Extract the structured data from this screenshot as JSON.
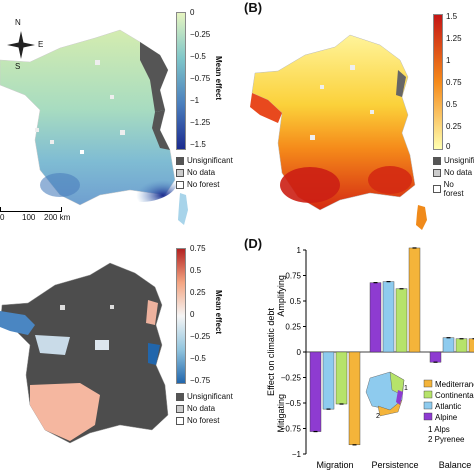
{
  "panels": {
    "B": "(B)",
    "D": "(D)"
  },
  "compass": {
    "N": "N",
    "E": "E",
    "S": "S"
  },
  "scalebar": {
    "t0": "0",
    "t1": "100",
    "t2": "200 km"
  },
  "colorbar_a": {
    "title": "Mean effect",
    "ticks": [
      "0",
      "−0.25",
      "−0.5",
      "−0.75",
      "−1",
      "−1.25",
      "−1.5"
    ],
    "colors": {
      "top": "#e6f5c0",
      "mid": "#7fc6c9",
      "low": "#4b7fbd",
      "bottom": "#1b2b8f"
    }
  },
  "colorbar_b": {
    "ticks": [
      "1.5",
      "1.25",
      "1",
      "0.75",
      "0.5",
      "0.25",
      "0"
    ],
    "colors": {
      "top": "#c41515",
      "mid": "#f58a1a",
      "bottom": "#ffffb0"
    }
  },
  "colorbar_c": {
    "title": "Mean effect",
    "ticks": [
      "0.75",
      "0.5",
      "0.25",
      "0",
      "−0.25",
      "−0.5",
      "−0.75"
    ],
    "colors": {
      "top": "#b22222",
      "mid": "#f5f5f5",
      "bottom": "#2166ac"
    }
  },
  "legend_map": {
    "unsig": "Unsignificant",
    "nodata": "No data",
    "noforest": "No forest",
    "unsig_b": "Unsignifi",
    "colors": {
      "unsig": "#555555",
      "nodata": "#cccccc",
      "noforest": "#ffffff"
    }
  },
  "chart_data": {
    "type": "bar",
    "categories": [
      "Migration",
      "Persistence",
      "Balance"
    ],
    "series": [
      {
        "name": "Alpine",
        "color": "#8e3bd1",
        "values": [
          -0.78,
          0.68,
          -0.1
        ]
      },
      {
        "name": "Atlantic",
        "color": "#8ecbee",
        "values": [
          -0.56,
          0.69,
          0.14
        ]
      },
      {
        "name": "Continental",
        "color": "#b6e36a",
        "values": [
          -0.51,
          0.62,
          0.13
        ]
      },
      {
        "name": "Mediterranean",
        "color": "#f4b43a",
        "values": [
          -0.91,
          1.02,
          0.13
        ]
      }
    ],
    "ylim": [
      -1,
      1
    ],
    "yticks": [
      "1",
      "0.75",
      "0.5",
      "0.25",
      "0",
      "−0.25",
      "−0.5",
      "−0.75",
      "−1"
    ],
    "ylabel": "Effect on climatic debt",
    "y_top_label": "Amplifying",
    "y_bottom_label": "Mitigating",
    "legend_labels": [
      "Mediterrane",
      "Continenta",
      "Atlantic",
      "Alpine"
    ],
    "notes": [
      "1  Alps",
      "2  Pyrenee"
    ]
  }
}
